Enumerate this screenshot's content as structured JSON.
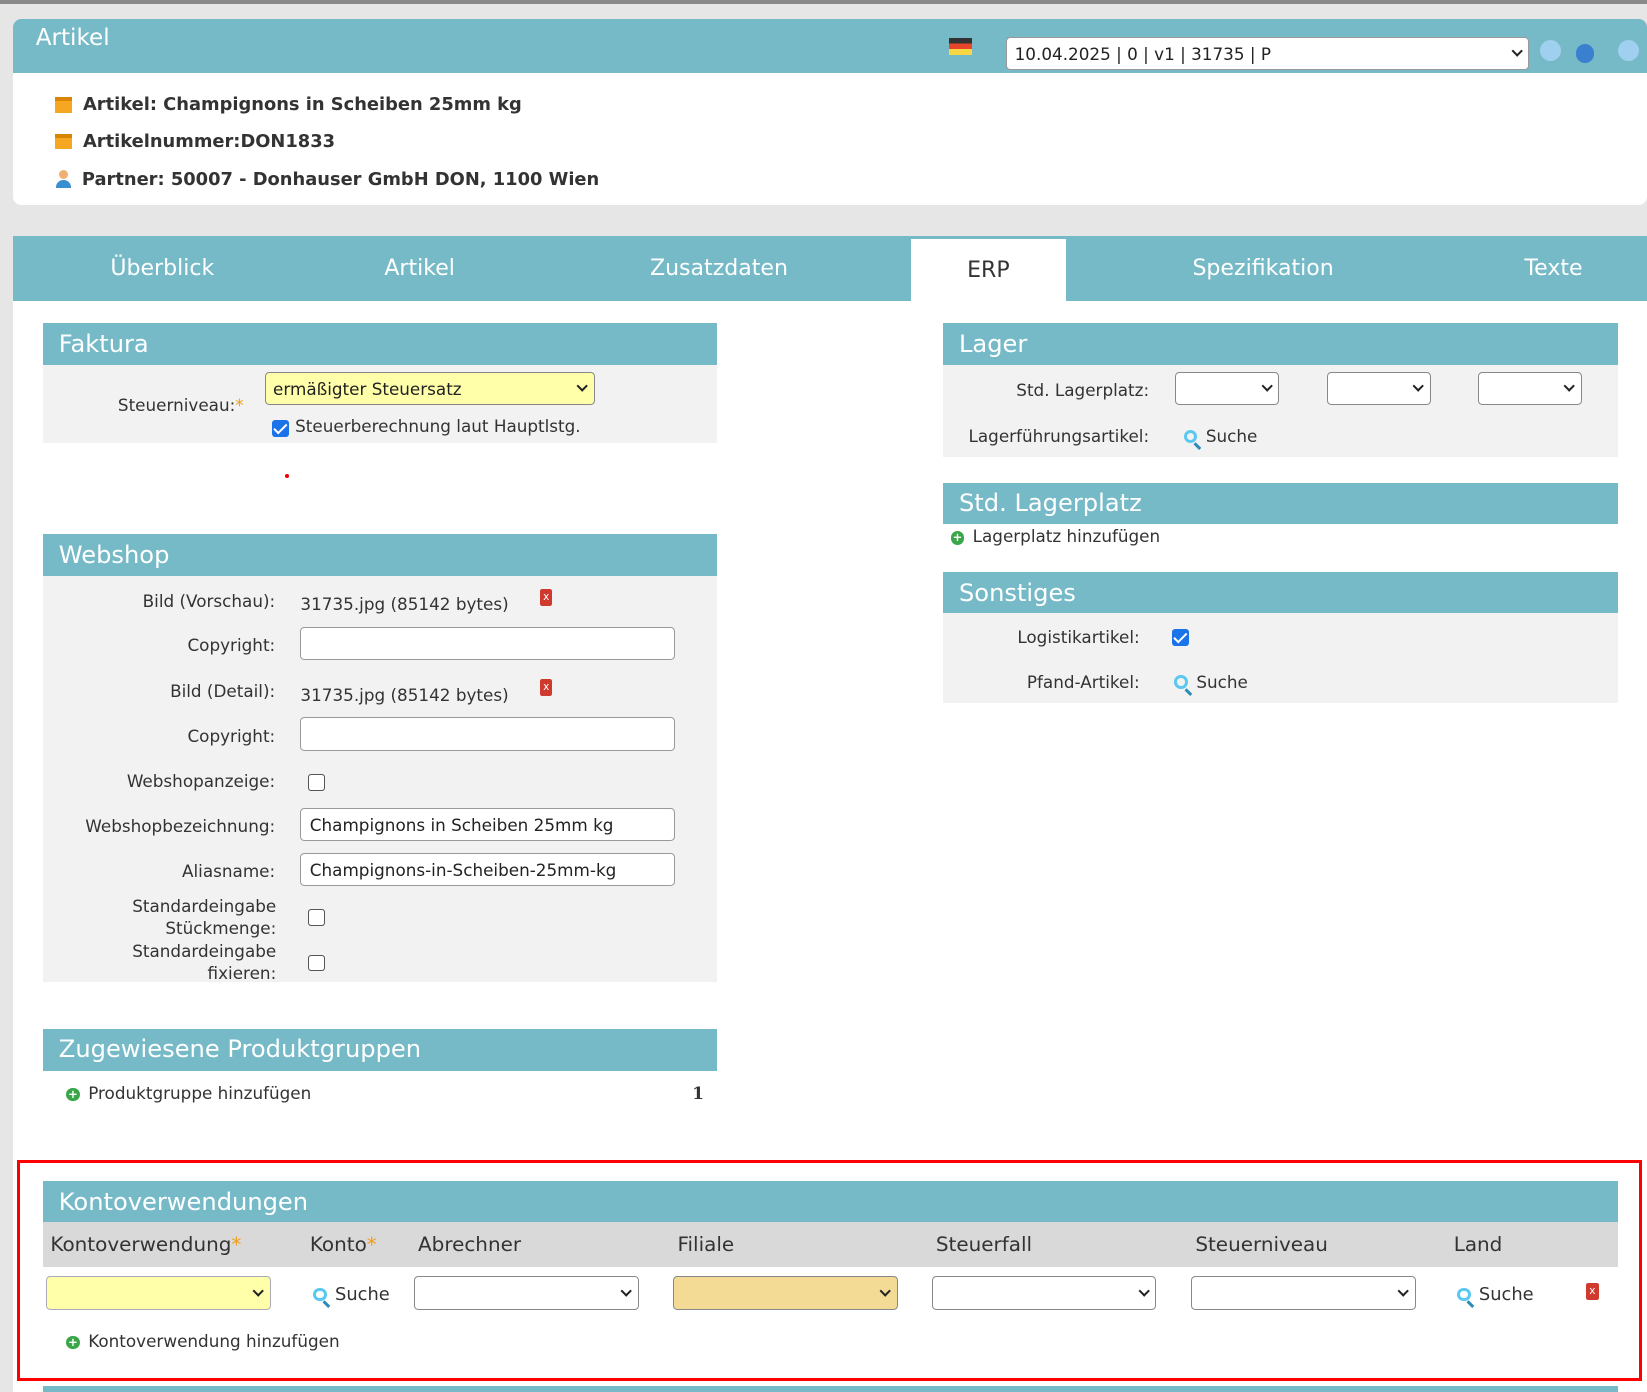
{
  "header": {
    "title": "Artikel",
    "flag": "de-flag-icon",
    "version_select": "10.04.2025 | 0 | v1 | 31735 | P",
    "icons": [
      "version-link-icon",
      "settings-check-icon",
      "version-icon"
    ]
  },
  "info": {
    "artikel": "Artikel: Champignons in Scheiben 25mm kg",
    "artikelnummer": "Artikelnummer:DON1833",
    "partner": "Partner: 50007 - Donhauser GmbH DON, 1100 Wien"
  },
  "tabs": [
    "Überblick",
    "Artikel",
    "Zusatzdaten",
    "ERP",
    "Spezifikation",
    "Texte"
  ],
  "active_tab": "ERP",
  "faktura": {
    "title": "Faktura",
    "steuerniveau_label": "Steuerniveau:",
    "steuerniveau_value": "ermäßigter Steuersatz",
    "steuerberechnung_label": "Steuerberechnung laut Hauptlstg.",
    "steuerberechnung_checked": true
  },
  "webshop": {
    "title": "Webshop",
    "bild_vorschau_label": "Bild (Vorschau):",
    "bild_vorschau_value": "31735.jpg (85142 bytes)",
    "copyright_label": "Copyright:",
    "copyright1_value": "",
    "bild_detail_label": "Bild (Detail):",
    "bild_detail_value": "31735.jpg (85142 bytes)",
    "copyright2_value": "",
    "webshopanzeige_label": "Webshopanzeige:",
    "webshopanzeige_checked": false,
    "webshopbezeichnung_label": "Webshopbezeichnung:",
    "webshopbezeichnung_value": "Champignons in Scheiben 25mm kg",
    "aliasname_label": "Aliasname:",
    "aliasname_value": "Champignons-in-Scheiben-25mm-kg",
    "std_stueck_label1": "Standardeingabe",
    "std_stueck_label2": "Stückmenge:",
    "std_stueck_checked": false,
    "std_fix_label1": "Standardeingabe",
    "std_fix_label2": "fixieren:",
    "std_fix_checked": false
  },
  "produktgruppen": {
    "title": "Zugewiesene Produktgruppen",
    "add_label": "Produktgruppe hinzufügen",
    "count": "1"
  },
  "lager": {
    "title": "Lager",
    "std_lagerplatz_label": "Std. Lagerplatz:",
    "lagerfuehrung_label": "Lagerführungsartikel:",
    "suche": "Suche"
  },
  "std_lagerplatz": {
    "title": "Std. Lagerplatz",
    "add_label": "Lagerplatz hinzufügen"
  },
  "sonstiges": {
    "title": "Sonstiges",
    "logistik_label": "Logistikartikel:",
    "logistik_checked": true,
    "pfand_label": "Pfand-Artikel:",
    "suche": "Suche"
  },
  "kontoverwendungen": {
    "title": "Kontoverwendungen",
    "columns": [
      "Kontoverwendung",
      "Konto",
      "Abrechner",
      "Filiale",
      "Steuerfall",
      "Steuerniveau",
      "Land"
    ],
    "required_mark": "*",
    "suche": "Suche",
    "add_label": "Kontoverwendung hinzufügen"
  },
  "colors": {
    "teal": "#76bac8",
    "highlight_red": "#ff0000",
    "required_yellow": "#ffffaa",
    "filiale_fill": "#f3db96"
  }
}
